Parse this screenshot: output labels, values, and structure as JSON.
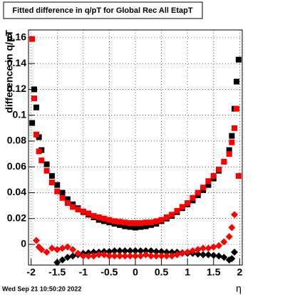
{
  "chart_data": {
    "type": "scatter",
    "title": "Fitted difference in q/pT for Global Rec All EtapT",
    "y_label": "difference in q/pT",
    "x_label": "η",
    "footer": "Wed Sep 21 10:50:20 2022",
    "x": [
      -1.98,
      -1.94,
      -1.9,
      -1.85,
      -1.8,
      -1.7,
      -1.6,
      -1.5,
      -1.4,
      -1.3,
      -1.2,
      -1.1,
      -1.0,
      -0.9,
      -0.8,
      -0.7,
      -0.6,
      -0.5,
      -0.4,
      -0.3,
      -0.2,
      -0.1,
      0,
      0.1,
      0.2,
      0.3,
      0.4,
      0.5,
      0.6,
      0.7,
      0.8,
      0.9,
      1.0,
      1.1,
      1.2,
      1.3,
      1.4,
      1.5,
      1.6,
      1.7,
      1.8,
      1.85,
      1.9,
      1.94,
      1.98
    ],
    "series": [
      {
        "color": "#000000",
        "marker": "square",
        "values": [
          0.094,
          0.12,
          0.106,
          0.083,
          0.073,
          0.062,
          0.053,
          0.046,
          0.04,
          0.035,
          0.031,
          0.028,
          0.025,
          0.023,
          0.021,
          0.019,
          0.018,
          0.017,
          0.016,
          0.015,
          0.014,
          0.0135,
          0.013,
          0.0135,
          0.014,
          0.015,
          0.016,
          0.018,
          0.02,
          0.022,
          0.025,
          0.028,
          0.031,
          0.034,
          0.038,
          0.042,
          0.046,
          0.051,
          0.057,
          0.064,
          0.073,
          0.084,
          0.105,
          0.126,
          0.143
        ]
      },
      {
        "color": "#ff0000",
        "marker": "square",
        "values": [
          0.159,
          0.113,
          0.085,
          0.072,
          0.065,
          0.057,
          0.048,
          0.041,
          0.036,
          0.032,
          0.029,
          0.027,
          0.0255,
          0.024,
          0.022,
          0.021,
          0.02,
          0.019,
          0.018,
          0.0175,
          0.017,
          0.0165,
          0.0165,
          0.0165,
          0.017,
          0.017,
          0.018,
          0.019,
          0.021,
          0.023,
          0.026,
          0.029,
          0.032,
          0.036,
          0.04,
          0.044,
          0.049,
          0.053,
          0.058,
          0.064,
          0.07,
          0.079,
          0.09,
          0.105,
          0.053
        ]
      },
      {
        "color": "#000000",
        "marker": "diamond",
        "values": [
          null,
          null,
          null,
          null,
          null,
          null,
          null,
          -0.014,
          -0.012,
          -0.01,
          -0.009,
          -0.008,
          -0.007,
          -0.0065,
          -0.006,
          -0.006,
          -0.0055,
          -0.0055,
          -0.005,
          -0.005,
          -0.005,
          -0.005,
          -0.005,
          -0.005,
          -0.005,
          -0.005,
          -0.0055,
          -0.0055,
          -0.006,
          -0.006,
          -0.006,
          -0.0065,
          -0.007,
          -0.007,
          -0.0075,
          -0.008,
          -0.008,
          -0.0085,
          -0.009,
          -0.01,
          -0.012,
          -0.011,
          -0.006,
          null,
          null
        ]
      },
      {
        "color": "#ff0000",
        "marker": "diamond",
        "values": [
          null,
          null,
          0.003,
          -0.002,
          -0.004,
          -0.006,
          -0.003,
          -0.004,
          -0.003,
          -0.002,
          -0.004,
          -0.007,
          -0.009,
          -0.009,
          -0.009,
          -0.008,
          -0.008,
          -0.009,
          -0.009,
          -0.009,
          -0.009,
          -0.009,
          -0.009,
          -0.009,
          -0.008,
          -0.009,
          -0.009,
          -0.009,
          -0.009,
          -0.009,
          -0.008,
          -0.007,
          -0.006,
          -0.005,
          -0.004,
          -0.003,
          -0.003,
          -0.002,
          -0.001,
          0.002,
          0.006,
          0.013,
          0.023,
          null,
          null
        ]
      }
    ],
    "xlim": [
      -2.05,
      2.05
    ],
    "ylim": [
      -0.016,
      0.166
    ],
    "xticks": [
      -2,
      -1.5,
      -1,
      -0.5,
      0,
      0.5,
      1,
      1.5,
      2
    ],
    "yticks": [
      0,
      0.02,
      0.04,
      0.06,
      0.08,
      0.1,
      0.12,
      0.14,
      0.16
    ],
    "grid": true
  }
}
